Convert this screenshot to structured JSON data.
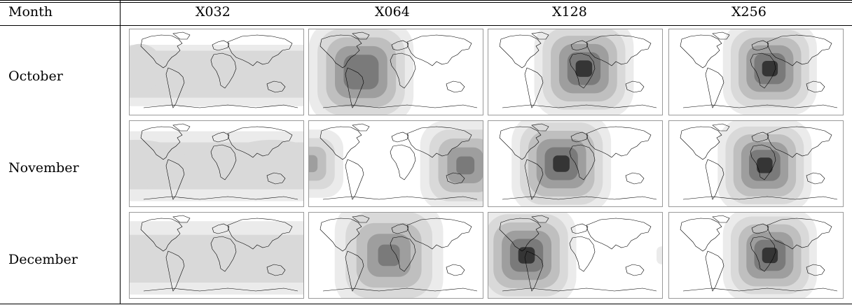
{
  "table": {
    "header_first": "Month",
    "columns": [
      "X032",
      "X064",
      "X128",
      "X256"
    ],
    "rows": [
      {
        "label": "October"
      },
      {
        "label": "November"
      },
      {
        "label": "December"
      }
    ]
  },
  "map_style": {
    "fill_light": "#ebebeb",
    "fill_mid_light": "#d9d9d9",
    "fill_mid": "#bfbfbf",
    "fill_mid_dark": "#9e9e9e",
    "fill_dark": "#7a7a7a",
    "fill_darkest": "#353535",
    "coast_color": "#000000"
  }
}
